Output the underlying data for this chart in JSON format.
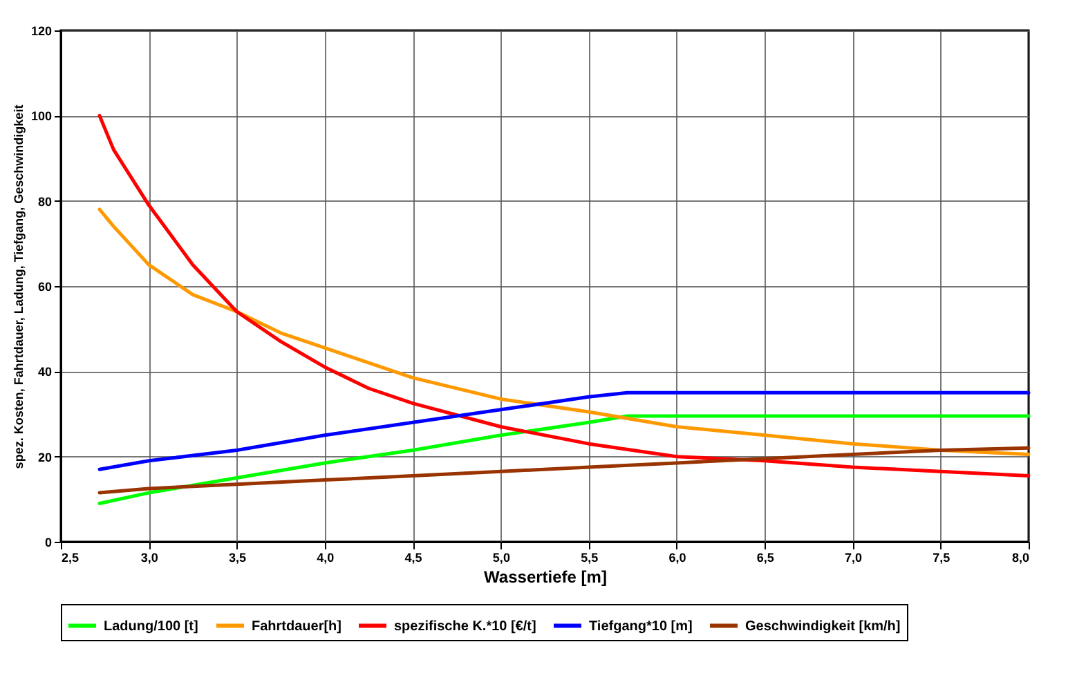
{
  "chart_data": {
    "type": "line",
    "xlabel": "Wassertiefe [m]",
    "ylabel": "spez. Kosten, Fahrtdauer, Ladung, Tiefgang, Geschwindigkeit",
    "xlim": [
      2.5,
      8.0
    ],
    "ylim": [
      0,
      120
    ],
    "xticks": [
      {
        "value": 2.5,
        "label": "2,5"
      },
      {
        "value": 3,
        "label": "3,0"
      },
      {
        "value": 3.5,
        "label": "3,5"
      },
      {
        "value": 4,
        "label": "4,0"
      },
      {
        "value": 4.5,
        "label": "4,5"
      },
      {
        "value": 5,
        "label": "5,0"
      },
      {
        "value": 5.5,
        "label": "5,5"
      },
      {
        "value": 6,
        "label": "6,0"
      },
      {
        "value": 6.5,
        "label": "6,5"
      },
      {
        "value": 7,
        "label": "7,0"
      },
      {
        "value": 7.5,
        "label": "7,5"
      },
      {
        "value": 8,
        "label": "8,0"
      }
    ],
    "yticks": [
      0,
      20,
      40,
      60,
      80,
      100,
      120
    ],
    "grid": true,
    "legend": "bottom",
    "marker": "none",
    "line_style": "solid",
    "series": [
      {
        "name": "Ladung/100 [t]",
        "color": "#00ff00",
        "x": [
          2.72,
          3.0,
          3.5,
          4.0,
          4.5,
          5.0,
          5.5,
          5.72,
          6.0,
          7.0,
          8.0
        ],
        "values": [
          9,
          11.5,
          15,
          18.5,
          21.5,
          25,
          28,
          29.5,
          29.5,
          29.5,
          29.5
        ]
      },
      {
        "name": "Fahrtdauer[h]",
        "color": "#ff9900",
        "x": [
          2.72,
          2.8,
          3.0,
          3.25,
          3.5,
          3.75,
          4.0,
          4.5,
          5.0,
          5.5,
          6.0,
          6.5,
          7.0,
          7.5,
          8.0
        ],
        "values": [
          78,
          74,
          65,
          58,
          54,
          49,
          45.5,
          38.5,
          33.5,
          30.5,
          27,
          25,
          23,
          21.5,
          20.5
        ]
      },
      {
        "name": "spezifische K.*10 [€/t]",
        "color": "#ff0000",
        "x": [
          2.72,
          2.8,
          3.0,
          3.25,
          3.5,
          3.75,
          4.0,
          4.25,
          4.5,
          5.0,
          5.5,
          6.0,
          6.5,
          7.0,
          7.5,
          8.0
        ],
        "values": [
          100,
          92,
          79,
          65,
          54,
          47,
          41,
          36,
          32.5,
          27,
          23,
          20,
          19,
          17.5,
          16.5,
          15.5
        ]
      },
      {
        "name": "Tiefgang*10 [m]",
        "color": "#0000ff",
        "x": [
          2.72,
          3.0,
          3.5,
          4.0,
          4.5,
          5.0,
          5.5,
          5.72,
          6.0,
          7.0,
          8.0
        ],
        "values": [
          17,
          19,
          21.5,
          25,
          28,
          31,
          34,
          35,
          35,
          35,
          35
        ]
      },
      {
        "name": "Geschwindigkeit [km/h]",
        "color": "#993300",
        "x": [
          2.72,
          3.0,
          3.5,
          4.0,
          4.5,
          5.0,
          5.5,
          6.0,
          6.5,
          7.0,
          7.5,
          8.0
        ],
        "values": [
          11.5,
          12.5,
          13.5,
          14.5,
          15.5,
          16.5,
          17.5,
          18.5,
          19.5,
          20.5,
          21.5,
          22
        ]
      }
    ]
  }
}
